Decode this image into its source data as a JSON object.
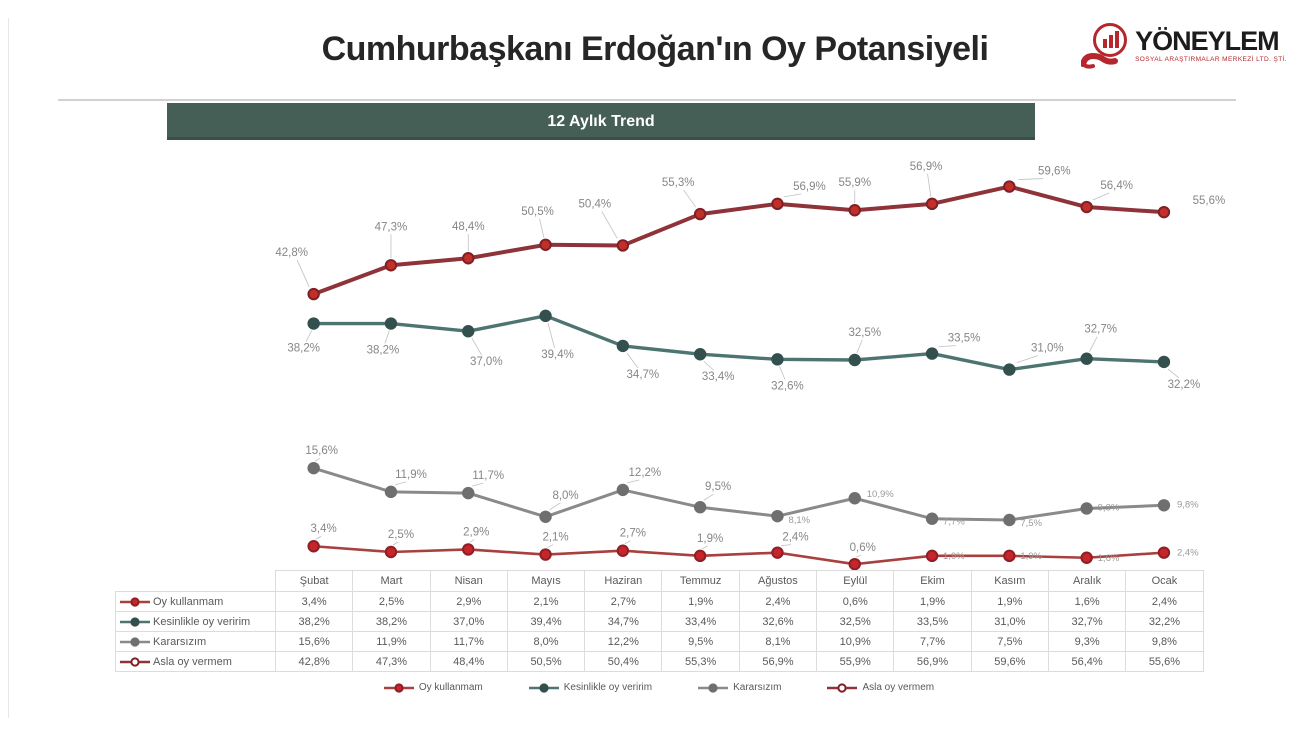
{
  "page": {
    "left_edge": "slide-left-edge"
  },
  "logo": {
    "name": "YÖNEYLEM",
    "subtitle": "SOSYAL ARAŞTIRMALAR MERKEZİ LTD. ŞTİ.",
    "accent_color": "#b5272d"
  },
  "chart_data": {
    "type": "line",
    "title": "Cumhurbaşkanı Erdoğan'ın Oy Potansiyeli",
    "subtitle": "12 Aylık Trend",
    "categories": [
      "Şubat",
      "Mart",
      "Nisan",
      "Mayıs",
      "Haziran",
      "Temmuz",
      "Ağustos",
      "Eylül",
      "Ekim",
      "Kasım",
      "Aralık",
      "Ocak"
    ],
    "value_format": "comma_decimal_percent",
    "ylim": [
      0,
      65
    ],
    "grid": false,
    "legend_position": "bottom",
    "series": [
      {
        "name": "Oy kullanmam",
        "values": [
          3.4,
          2.5,
          2.9,
          2.1,
          2.7,
          1.9,
          2.4,
          0.6,
          1.9,
          1.9,
          1.6,
          2.4
        ],
        "line_color": "#a8403f",
        "marker_fill": "#c5252b",
        "marker_stroke": "#8e1f24",
        "line_width": 2.6,
        "marker_open": false,
        "label_offsets": [
          [
            10,
            -14,
            "m"
          ],
          [
            10,
            -14,
            "m"
          ],
          [
            8,
            -14,
            "m"
          ],
          [
            10,
            -14,
            "m"
          ],
          [
            10,
            -14,
            "m"
          ],
          [
            10,
            -14,
            "m"
          ],
          [
            18,
            -12,
            "m"
          ],
          [
            8,
            -13,
            "m"
          ],
          [
            11,
            3,
            "s"
          ],
          [
            11,
            3,
            "s"
          ],
          [
            11,
            3,
            "s"
          ],
          [
            13,
            3,
            "s"
          ]
        ]
      },
      {
        "name": "Kesinlikle oy veririm",
        "values": [
          38.2,
          38.2,
          37.0,
          39.4,
          34.7,
          33.4,
          32.6,
          32.5,
          33.5,
          31.0,
          32.7,
          32.2
        ],
        "line_color": "#4e7471",
        "marker_fill": "#33504e",
        "marker_stroke": "#33504e",
        "line_width": 3.4,
        "marker_open": false,
        "label_offsets": [
          [
            -10,
            28,
            "m"
          ],
          [
            -8,
            30,
            "m"
          ],
          [
            18,
            34,
            "m"
          ],
          [
            12,
            42,
            "m"
          ],
          [
            20,
            32,
            "m"
          ],
          [
            18,
            26,
            "m"
          ],
          [
            10,
            30,
            "m"
          ],
          [
            10,
            -24,
            "m"
          ],
          [
            32,
            -12,
            "m"
          ],
          [
            38,
            -18,
            "m"
          ],
          [
            14,
            -26,
            "m"
          ],
          [
            20,
            26,
            "m"
          ]
        ]
      },
      {
        "name": "Kararsızım",
        "values": [
          15.6,
          11.9,
          11.7,
          8.0,
          12.2,
          9.5,
          8.1,
          10.9,
          7.7,
          7.5,
          9.3,
          9.8
        ],
        "line_color": "#8a8a8a",
        "marker_fill": "#6f6f6f",
        "marker_stroke": "#6f6f6f",
        "line_width": 3,
        "marker_open": false,
        "label_offsets": [
          [
            8,
            -14,
            "m"
          ],
          [
            20,
            -14,
            "m"
          ],
          [
            20,
            -14,
            "m"
          ],
          [
            20,
            -18,
            "m"
          ],
          [
            22,
            -14,
            "m"
          ],
          [
            18,
            -17,
            "m"
          ],
          [
            11,
            7,
            "s"
          ],
          [
            12,
            -1,
            "s"
          ],
          [
            11,
            6,
            "s"
          ],
          [
            11,
            6,
            "s"
          ],
          [
            11,
            2,
            "s"
          ],
          [
            13,
            2,
            "s"
          ]
        ]
      },
      {
        "name": "Asla oy vermem",
        "values": [
          42.8,
          47.3,
          48.4,
          50.5,
          50.4,
          55.3,
          56.9,
          55.9,
          56.9,
          59.6,
          56.4,
          55.6
        ],
        "line_color": "#8e3339",
        "marker_fill": "#c03028",
        "marker_stroke": "#801f26",
        "line_width": 4,
        "marker_open": true,
        "label_offsets": [
          [
            -22,
            -38,
            "m"
          ],
          [
            0,
            -35,
            "m"
          ],
          [
            0,
            -28,
            "m"
          ],
          [
            -8,
            -30,
            "m"
          ],
          [
            -28,
            -38,
            "m"
          ],
          [
            -22,
            -28,
            "m"
          ],
          [
            32,
            -14,
            "m"
          ],
          [
            0,
            -24,
            "m"
          ],
          [
            -6,
            -34,
            "m"
          ],
          [
            45,
            -12,
            "m"
          ],
          [
            30,
            -18,
            "m"
          ],
          [
            45,
            -8,
            "m"
          ]
        ]
      }
    ]
  }
}
